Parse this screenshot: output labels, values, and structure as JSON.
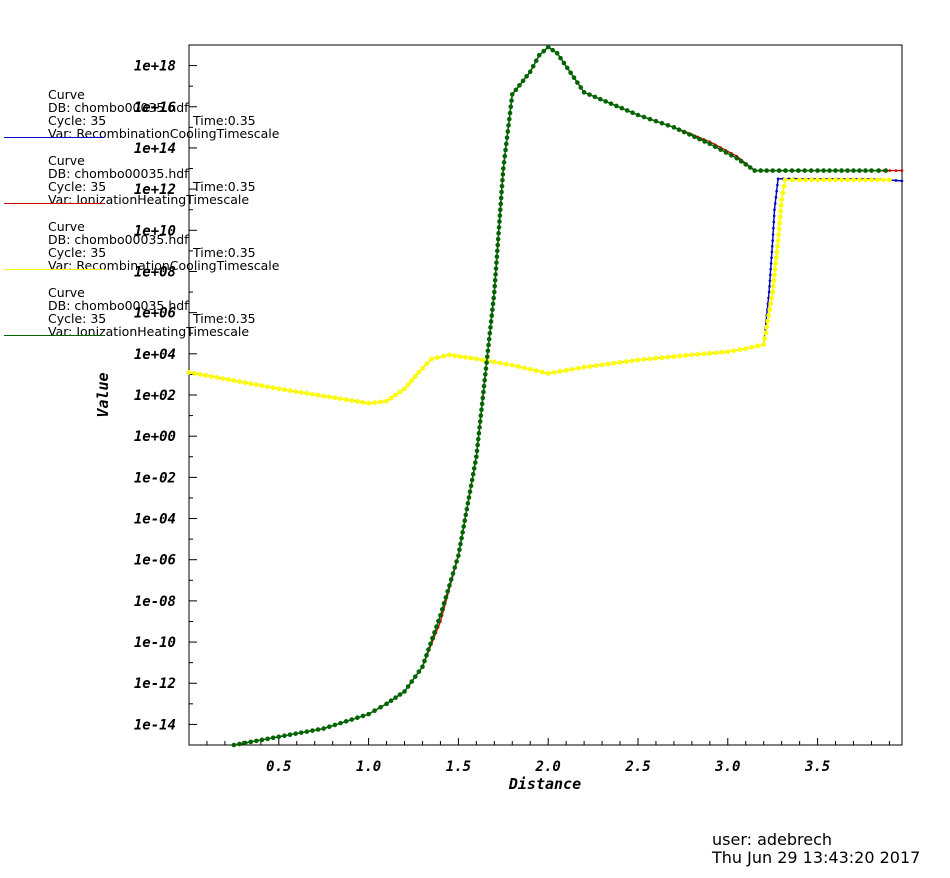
{
  "chart_data": {
    "type": "line",
    "xlabel": "Distance",
    "ylabel": "Value",
    "yscale": "log",
    "xlim": [
      0,
      3.97
    ],
    "ylim": [
      1e-15,
      1e+19
    ],
    "xticks": [
      "0.5",
      "1.0",
      "1.5",
      "2.0",
      "2.5",
      "3.0",
      "3.5"
    ],
    "xtick_values": [
      0.5,
      1.0,
      1.5,
      2.0,
      2.5,
      3.0,
      3.5
    ],
    "yticks": [
      "1e+18",
      "1e+16",
      "1e+14",
      "1e+12",
      "1e+10",
      "1e+08",
      "1e+06",
      "1e+04",
      "1e+02",
      "1e+00",
      "1e-02",
      "1e-04",
      "1e-06",
      "1e-08",
      "1e-10",
      "1e-12",
      "1e-14"
    ],
    "ytick_exps": [
      18,
      16,
      14,
      12,
      10,
      8,
      6,
      4,
      2,
      0,
      -2,
      -4,
      -6,
      -8,
      -10,
      -12,
      -14
    ],
    "legend_position": "left",
    "series": [
      {
        "name": "Var: RecombinationCoolingTimescale",
        "label": "Curve",
        "db": "DB: chombo00035.hdf",
        "cycle": "Cycle: 35",
        "time": "Time:0.35",
        "color": "#0000cc",
        "x": [
          0,
          0.25,
          0.5,
          0.75,
          1.0,
          1.1,
          1.2,
          1.3,
          1.35,
          1.45,
          1.6,
          1.8,
          2.0,
          2.2,
          2.5,
          2.8,
          3.0,
          3.1,
          3.2,
          3.23,
          3.25,
          3.26,
          3.28,
          3.4,
          3.6,
          3.8,
          3.97
        ],
        "y_exp": [
          3.1,
          2.7,
          2.3,
          1.95,
          1.6,
          1.7,
          2.3,
          3.3,
          3.75,
          3.95,
          3.75,
          3.45,
          3.05,
          3.35,
          3.7,
          3.95,
          4.1,
          4.25,
          4.45,
          7.0,
          9.5,
          11.0,
          12.5,
          12.5,
          12.5,
          12.5,
          12.4
        ]
      },
      {
        "name": "Var: IonizationHeatingTimescale",
        "label": "Curve",
        "db": "DB: chombo00035.hdf",
        "cycle": "Cycle: 35",
        "time": "Time:0.35",
        "color": "#cc0000",
        "x": [
          0.25,
          0.5,
          0.75,
          1.0,
          1.1,
          1.2,
          1.3,
          1.4,
          1.5,
          1.6,
          1.7,
          1.75,
          1.8,
          1.9,
          1.95,
          2.0,
          2.05,
          2.2,
          2.5,
          2.7,
          2.9,
          3.05,
          3.15,
          3.25,
          3.5,
          3.8,
          3.97
        ],
        "y_exp": [
          -15.0,
          -14.6,
          -14.2,
          -13.5,
          -13.0,
          -12.4,
          -11.2,
          -9.0,
          -5.8,
          -1.0,
          7.0,
          13.0,
          16.6,
          17.7,
          18.5,
          18.9,
          18.6,
          16.7,
          15.6,
          15.0,
          14.3,
          13.6,
          12.9,
          12.9,
          12.9,
          12.9,
          12.9
        ]
      },
      {
        "name": "Var: RecombinationCoolingTimescale",
        "label": "Curve",
        "db": "DB: chombo00035.hdf",
        "cycle": "Cycle: 35",
        "time": "Time:0.35",
        "color": "#ffff00",
        "x": [
          0,
          0.25,
          0.5,
          0.75,
          1.0,
          1.1,
          1.2,
          1.3,
          1.35,
          1.45,
          1.6,
          1.8,
          2.0,
          2.2,
          2.5,
          2.8,
          3.0,
          3.1,
          3.2,
          3.25,
          3.28,
          3.3,
          3.32,
          3.4,
          3.6,
          3.8,
          3.9
        ],
        "y_exp": [
          3.1,
          2.7,
          2.3,
          1.95,
          1.6,
          1.7,
          2.3,
          3.3,
          3.75,
          3.95,
          3.75,
          3.45,
          3.05,
          3.35,
          3.7,
          3.95,
          4.1,
          4.25,
          4.45,
          7.0,
          9.5,
          11.5,
          12.45,
          12.45,
          12.45,
          12.45,
          12.45
        ]
      },
      {
        "name": "Var: IonizationHeatingTimescale",
        "label": "Curve",
        "db": "DB: chombo00035.hdf",
        "cycle": "Cycle: 35",
        "time": "Time:0.35",
        "color": "#006400",
        "x": [
          0.25,
          0.5,
          0.75,
          1.0,
          1.1,
          1.2,
          1.3,
          1.4,
          1.5,
          1.6,
          1.7,
          1.75,
          1.8,
          1.9,
          1.95,
          2.0,
          2.05,
          2.2,
          2.5,
          2.7,
          2.9,
          3.05,
          3.15,
          3.25,
          3.5,
          3.8,
          3.88
        ],
        "y_exp": [
          -15.0,
          -14.6,
          -14.2,
          -13.5,
          -13.0,
          -12.4,
          -11.2,
          -8.7,
          -5.8,
          -1.0,
          7.0,
          13.0,
          16.6,
          17.7,
          18.5,
          18.9,
          18.6,
          16.7,
          15.6,
          15.0,
          14.2,
          13.5,
          12.9,
          12.9,
          12.9,
          12.9,
          12.9
        ]
      }
    ]
  },
  "footer": {
    "user": "user: adebrech",
    "date": "Thu Jun 29 13:43:20 2017"
  }
}
